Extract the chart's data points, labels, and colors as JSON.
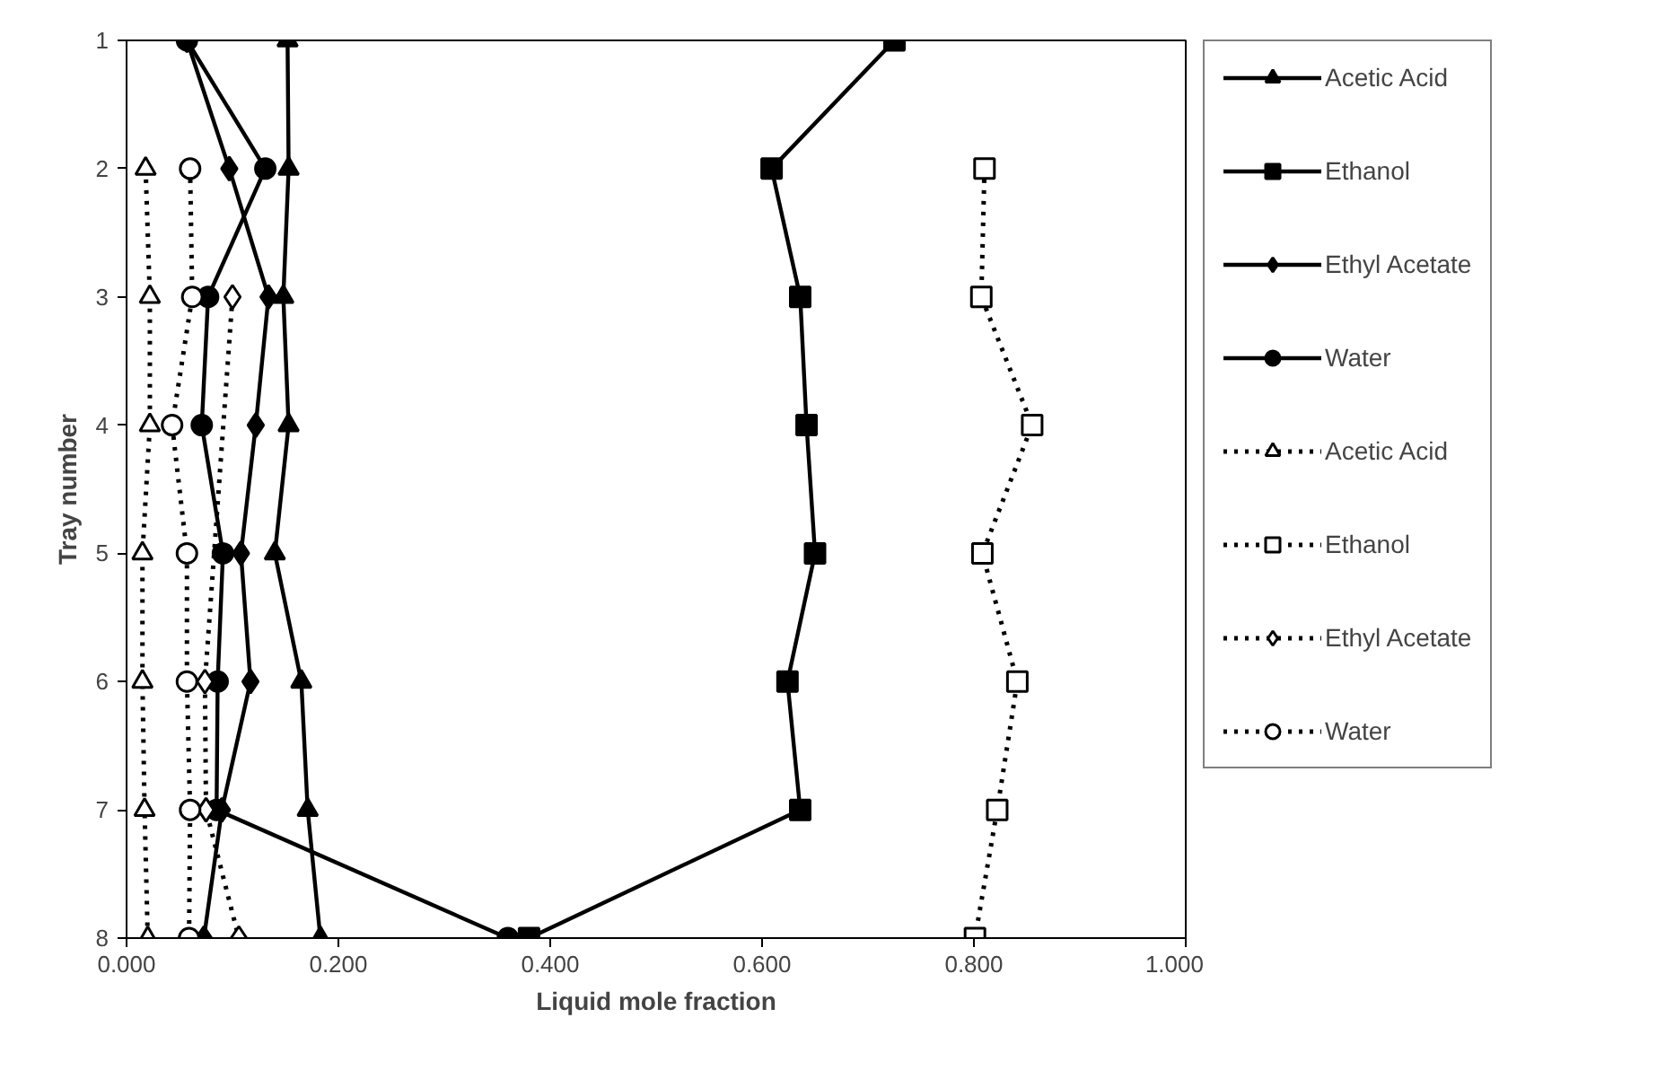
{
  "chart_data": {
    "type": "line",
    "xlabel": "Liquid mole fraction",
    "ylabel": "Tray number",
    "x": [
      1,
      2,
      3,
      4,
      5,
      6,
      7,
      8
    ],
    "orientation": "horizontal",
    "xlim": [
      0,
      1
    ],
    "xticks": [
      {
        "value": 0,
        "label": "0.000"
      },
      {
        "value": 0.2,
        "label": "0.200"
      },
      {
        "value": 0.4,
        "label": "0.400"
      },
      {
        "value": 0.6,
        "label": "0.600"
      },
      {
        "value": 0.8,
        "label": "0.800"
      },
      {
        "value": 1,
        "label": "1.000"
      }
    ],
    "ylim": [
      8,
      1
    ],
    "yticks": [
      1,
      2,
      3,
      4,
      5,
      6,
      7,
      8
    ],
    "grid": false,
    "legend": "right",
    "series": [
      {
        "name": "Acetic Acid",
        "color": "#000000",
        "marker": "triangle",
        "line_style": "solid",
        "values": [
          0.152,
          0.153,
          0.148,
          0.153,
          0.14,
          0.165,
          0.171,
          0.183
        ]
      },
      {
        "name": "Ethanol",
        "color": "#000000",
        "marker": "square",
        "line_style": "solid",
        "values": [
          0.725,
          0.609,
          0.636,
          0.642,
          0.65,
          0.624,
          0.636,
          0.38
        ]
      },
      {
        "name": "Ethyl Acetate",
        "color": "#000000",
        "marker": "diamond",
        "line_style": "solid",
        "values": [
          0.057,
          0.097,
          0.134,
          0.122,
          0.108,
          0.117,
          0.09,
          0.073
        ]
      },
      {
        "name": "Water",
        "color": "#000000",
        "marker": "circle",
        "line_style": "solid",
        "values": [
          0.057,
          0.131,
          0.077,
          0.071,
          0.091,
          0.086,
          0.085,
          0.36
        ]
      },
      {
        "name": "Acetic Acid",
        "color": "#000000",
        "marker": "triangle",
        "line_style": "dotted",
        "values": [
          null,
          0.018,
          0.022,
          0.022,
          0.015,
          0.015,
          0.017,
          0.02
        ]
      },
      {
        "name": "Ethanol",
        "color": "#000000",
        "marker": "square",
        "line_style": "dotted",
        "values": [
          null,
          0.81,
          0.807,
          0.855,
          0.808,
          0.841,
          0.822,
          0.801
        ]
      },
      {
        "name": "Ethyl Acetate",
        "color": "#000000",
        "marker": "diamond",
        "line_style": "dotted",
        "values": [
          null,
          null,
          0.1,
          null,
          null,
          0.074,
          0.075,
          0.106
        ]
      },
      {
        "name": "Water",
        "color": "#000000",
        "marker": "circle",
        "line_style": "dotted",
        "values": [
          null,
          0.06,
          0.062,
          0.043,
          0.057,
          0.057,
          0.06,
          0.059
        ]
      }
    ]
  }
}
